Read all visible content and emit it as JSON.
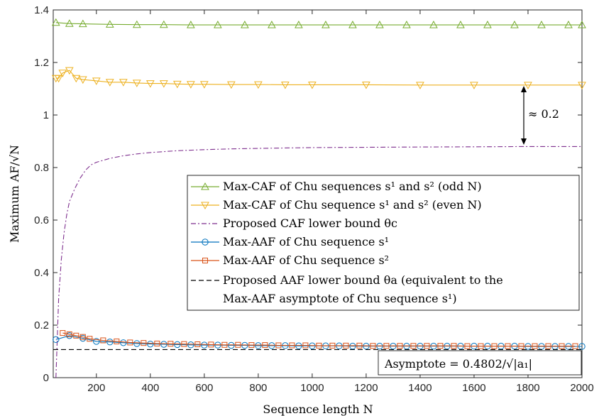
{
  "chart_data": {
    "type": "line",
    "xlabel": "Sequence length N",
    "ylabel": "Maximum AF/√N",
    "xlim": [
      40,
      2000
    ],
    "ylim": [
      0,
      1.4
    ],
    "xticks": [
      "200",
      "400",
      "600",
      "800",
      "1000",
      "1200",
      "1400",
      "1600",
      "1800",
      "2000"
    ],
    "xtick_values": [
      200,
      400,
      600,
      800,
      1000,
      1200,
      1400,
      1600,
      1800,
      2000
    ],
    "yticks": [
      "0",
      "0.2",
      "0.4",
      "0.6",
      "0.8",
      "1",
      "1.2",
      "1.4"
    ],
    "ytick_values": [
      0,
      0.2,
      0.4,
      0.6,
      0.8,
      1,
      1.2,
      1.4
    ],
    "grid": false,
    "legend_position": "center-right",
    "series": [
      {
        "name": "Max-CAF of Chu sequences s¹ and s² (odd N)",
        "color": "#77AC30",
        "marker": "triangle-up",
        "x": [
          50,
          100,
          150,
          250,
          350,
          450,
          550,
          650,
          750,
          850,
          950,
          1050,
          1150,
          1250,
          1350,
          1450,
          1550,
          1650,
          1750,
          1850,
          1950,
          2000
        ],
        "y": [
          1.352,
          1.348,
          1.347,
          1.345,
          1.344,
          1.344,
          1.343,
          1.343,
          1.343,
          1.343,
          1.343,
          1.343,
          1.343,
          1.343,
          1.343,
          1.343,
          1.343,
          1.343,
          1.343,
          1.343,
          1.343,
          1.343
        ]
      },
      {
        "name": "Max-CAF of Chu sequence s¹ and s² (even N)",
        "color": "#EDB120",
        "marker": "triangle-down",
        "x": [
          50,
          60,
          75,
          100,
          125,
          150,
          200,
          250,
          300,
          350,
          400,
          450,
          500,
          550,
          600,
          700,
          800,
          900,
          1000,
          1200,
          1400,
          1600,
          1800,
          2000
        ],
        "y": [
          1.14,
          1.14,
          1.16,
          1.17,
          1.14,
          1.135,
          1.13,
          1.125,
          1.125,
          1.122,
          1.12,
          1.12,
          1.118,
          1.117,
          1.117,
          1.116,
          1.116,
          1.115,
          1.115,
          1.115,
          1.114,
          1.114,
          1.114,
          1.114
        ]
      },
      {
        "name": "Proposed CAF lower bound θc",
        "color": "#7E2F8E",
        "dash": "dashdot",
        "x": [
          50,
          60,
          70,
          80,
          90,
          100,
          120,
          140,
          160,
          180,
          200,
          250,
          300,
          350,
          400,
          500,
          600,
          700,
          800,
          1000,
          1200,
          1400,
          1600,
          1800,
          2000
        ],
        "y": [
          0.0,
          0.3,
          0.45,
          0.55,
          0.62,
          0.67,
          0.72,
          0.76,
          0.79,
          0.81,
          0.82,
          0.835,
          0.845,
          0.852,
          0.857,
          0.864,
          0.868,
          0.871,
          0.873,
          0.876,
          0.877,
          0.878,
          0.879,
          0.88,
          0.88
        ]
      },
      {
        "name": "Max-AAF of Chu sequence s¹",
        "color": "#0072BD",
        "marker": "circle",
        "x": [
          50,
          100,
          150,
          200,
          250,
          300,
          350,
          400,
          450,
          500,
          550,
          600,
          650,
          700,
          750,
          800,
          850,
          900,
          950,
          1000,
          1050,
          1100,
          1150,
          1200,
          1250,
          1300,
          1350,
          1400,
          1450,
          1500,
          1550,
          1600,
          1650,
          1700,
          1750,
          1800,
          1850,
          1900,
          1950,
          2000
        ],
        "y": [
          0.145,
          0.16,
          0.15,
          0.138,
          0.136,
          0.133,
          0.13,
          0.128,
          0.127,
          0.126,
          0.125,
          0.124,
          0.124,
          0.123,
          0.123,
          0.122,
          0.122,
          0.122,
          0.121,
          0.121,
          0.121,
          0.121,
          0.12,
          0.12,
          0.12,
          0.12,
          0.12,
          0.12,
          0.12,
          0.12,
          0.12,
          0.12,
          0.12,
          0.12,
          0.12,
          0.119,
          0.119,
          0.119,
          0.119,
          0.119
        ]
      },
      {
        "name": "Max-AAF of Chu sequence s²",
        "color": "#D95319",
        "marker": "square",
        "x": [
          75,
          100,
          125,
          150,
          175,
          225,
          275,
          325,
          375,
          425,
          475,
          525,
          575,
          625,
          675,
          725,
          775,
          825,
          875,
          925,
          975,
          1025,
          1075,
          1125,
          1175,
          1225,
          1275,
          1325,
          1375,
          1425,
          1475,
          1525,
          1575,
          1625,
          1675,
          1725,
          1775,
          1825,
          1875,
          1925,
          1975
        ],
        "y": [
          0.17,
          0.165,
          0.16,
          0.155,
          0.148,
          0.142,
          0.138,
          0.134,
          0.132,
          0.13,
          0.129,
          0.128,
          0.127,
          0.126,
          0.125,
          0.125,
          0.124,
          0.124,
          0.123,
          0.123,
          0.123,
          0.122,
          0.122,
          0.122,
          0.122,
          0.121,
          0.121,
          0.121,
          0.121,
          0.121,
          0.121,
          0.121,
          0.12,
          0.12,
          0.12,
          0.12,
          0.12,
          0.12,
          0.12,
          0.12,
          0.12
        ]
      },
      {
        "name": "Proposed AAF lower bound θa (equivalent to the Max-AAF asymptote of Chu sequence s¹)",
        "color": "#000000",
        "dash": "dashed",
        "x": [
          40,
          2000
        ],
        "y": [
          0.107,
          0.107
        ]
      }
    ],
    "legend": [
      "Max-CAF of Chu sequences s¹ and s² (odd N)",
      "Max-CAF of Chu sequence s¹ and s² (even N)",
      "Proposed CAF lower bound θc",
      "Max-AAF of Chu sequence s¹",
      "Max-AAF of Chu sequence s²",
      "Proposed AAF lower bound θa (equivalent to the",
      "Max-AAF asymptote of Chu sequence s¹)"
    ],
    "annotations": [
      {
        "text": "≈ 0.2",
        "x": 1800,
        "y1": 0.88,
        "y2": 1.114
      },
      {
        "text": "Asymptote = 0.4802/√|a₁|"
      }
    ]
  }
}
